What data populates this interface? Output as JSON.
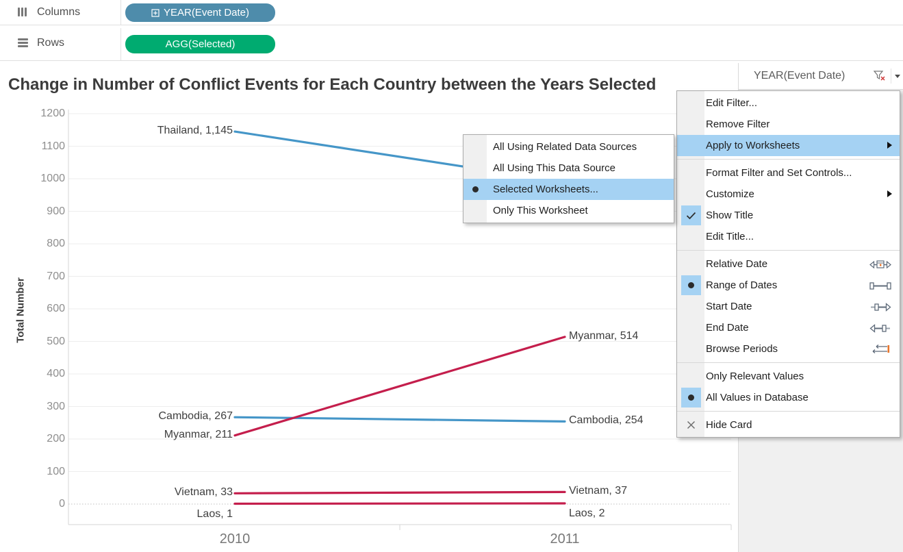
{
  "shelves": {
    "columns_label": "Columns",
    "rows_label": "Rows",
    "columns_pill": "YEAR(Event Date)",
    "rows_pill": "AGG(Selected)",
    "columns_pill_color": "#4e8cab",
    "rows_pill_color": "#00ab70"
  },
  "sheet": {
    "title": "Change in Number of Conflict Events for Each Country between the Years Selected"
  },
  "chart_data": {
    "type": "line",
    "title": "Change in Number of Conflict Events for Each Country between the Years Selected",
    "ylabel": "Total Number",
    "x": [
      "2010",
      "2011"
    ],
    "ylim": [
      0,
      1200
    ],
    "y_ticks": [
      0,
      100,
      200,
      300,
      400,
      500,
      600,
      700,
      800,
      900,
      1000,
      1100,
      1200
    ],
    "grid": "horizontal",
    "legend": "none",
    "series": [
      {
        "name": "Thailand",
        "color": "#4596c8",
        "values": [
          1145,
          null
        ],
        "labels": [
          "Thailand, 1,145",
          null
        ],
        "note": "2011 endpoint hidden behind open context menu"
      },
      {
        "name": "Cambodia",
        "color": "#4596c8",
        "values": [
          267,
          254
        ],
        "labels": [
          "Cambodia, 267",
          "Cambodia, 254"
        ]
      },
      {
        "name": "Myanmar",
        "color": "#c41e4c",
        "values": [
          211,
          514
        ],
        "labels": [
          "Myanmar, 211",
          "Myanmar, 514"
        ]
      },
      {
        "name": "Vietnam",
        "color": "#c41e4c",
        "values": [
          33,
          37
        ],
        "labels": [
          "Vietnam, 33",
          "Vietnam, 37"
        ]
      },
      {
        "name": "Laos",
        "color": "#c41e4c",
        "values": [
          1,
          2
        ],
        "labels": [
          "Laos, 1",
          "Laos, 2"
        ],
        "label_position": "below"
      }
    ]
  },
  "filter_card": {
    "title": "YEAR(Event Date)",
    "icons": [
      "remove-filter-funnel-icon",
      "dropdown-caret-icon"
    ]
  },
  "context_menu": {
    "items": [
      {
        "label": "Edit Filter...",
        "type": "item"
      },
      {
        "label": "Remove Filter",
        "type": "item"
      },
      {
        "label": "Apply to Worksheets",
        "type": "item",
        "highlighted": true,
        "submenu_arrow": true
      },
      {
        "type": "separator"
      },
      {
        "label": "Format Filter and Set Controls...",
        "type": "item"
      },
      {
        "label": "Customize",
        "type": "item",
        "submenu_arrow": true
      },
      {
        "label": "Show Title",
        "type": "item",
        "left_mark": "check"
      },
      {
        "label": "Edit Title...",
        "type": "item"
      },
      {
        "type": "separator"
      },
      {
        "label": "Relative Date",
        "type": "item",
        "right_icon": "relative-date-icon"
      },
      {
        "label": "Range of Dates",
        "type": "item",
        "left_mark": "radio",
        "right_icon": "range-of-dates-icon"
      },
      {
        "label": "Start Date",
        "type": "item",
        "right_icon": "start-date-icon"
      },
      {
        "label": "End Date",
        "type": "item",
        "right_icon": "end-date-icon"
      },
      {
        "label": "Browse Periods",
        "type": "item",
        "right_icon": "browse-periods-icon"
      },
      {
        "type": "separator"
      },
      {
        "label": "Only Relevant Values",
        "type": "item"
      },
      {
        "label": "All Values in Database",
        "type": "item",
        "left_mark": "radio"
      },
      {
        "type": "separator"
      },
      {
        "label": "Hide Card",
        "type": "item",
        "left_mark": "close"
      }
    ]
  },
  "submenu": {
    "items": [
      {
        "label": "All Using Related Data Sources",
        "type": "item"
      },
      {
        "label": "All Using This Data Source",
        "type": "item"
      },
      {
        "label": "Selected Worksheets...",
        "type": "item",
        "highlighted": true,
        "left_mark": "radio"
      },
      {
        "label": "Only This Worksheet",
        "type": "item"
      }
    ]
  },
  "colors": {
    "highlight_blue": "#a5d2f3",
    "line_blue": "#4596c8",
    "line_red": "#c41e4c",
    "gridline": "#ededed",
    "axis_line": "#d6d6d6"
  }
}
